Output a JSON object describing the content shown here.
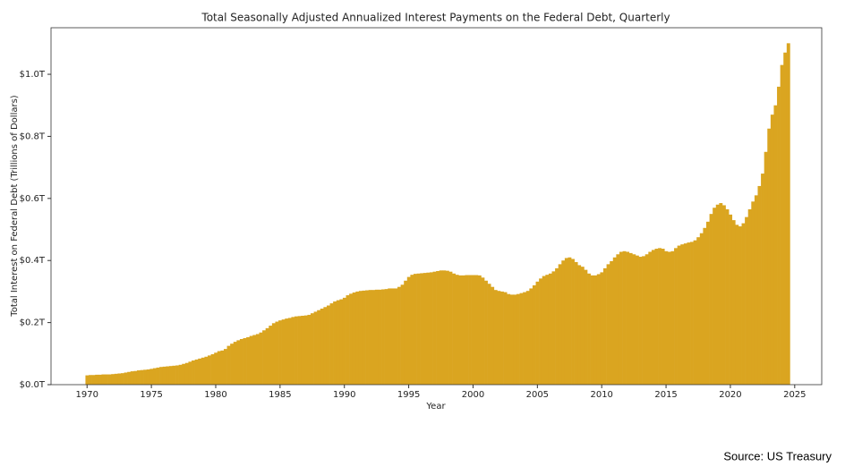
{
  "chart_data": {
    "type": "bar",
    "title": "Total Seasonally Adjusted Annualized Interest Payments on the Federal Debt, Quarterly",
    "xlabel": "Year",
    "ylabel": "Total Interest on Federal Debt (Trillions of Dollars)",
    "source": "Source: US Treasury",
    "color": "#daa520",
    "xlim": [
      1967.2,
      2027.1
    ],
    "ylim": [
      0,
      1.15
    ],
    "xticks": [
      1970,
      1975,
      1980,
      1985,
      1990,
      1995,
      2000,
      2005,
      2010,
      2015,
      2020,
      2025
    ],
    "yticks": [
      {
        "value": 0,
        "label": "$0.0T"
      },
      {
        "value": 0.2,
        "label": "$0.2T"
      },
      {
        "value": 0.4,
        "label": "$0.4T"
      },
      {
        "value": 0.6,
        "label": "$0.6T"
      },
      {
        "value": 0.8,
        "label": "$0.8T"
      },
      {
        "value": 1.0,
        "label": "$1.0T"
      }
    ],
    "x": [
      1970,
      1970.25,
      1970.5,
      1970.75,
      1971,
      1971.25,
      1971.5,
      1971.75,
      1972,
      1972.25,
      1972.5,
      1972.75,
      1973,
      1973.25,
      1973.5,
      1973.75,
      1974,
      1974.25,
      1974.5,
      1974.75,
      1975,
      1975.25,
      1975.5,
      1975.75,
      1976,
      1976.25,
      1976.5,
      1976.75,
      1977,
      1977.25,
      1977.5,
      1977.75,
      1978,
      1978.25,
      1978.5,
      1978.75,
      1979,
      1979.25,
      1979.5,
      1979.75,
      1980,
      1980.25,
      1980.5,
      1980.75,
      1981,
      1981.25,
      1981.5,
      1981.75,
      1982,
      1982.25,
      1982.5,
      1982.75,
      1983,
      1983.25,
      1983.5,
      1983.75,
      1984,
      1984.25,
      1984.5,
      1984.75,
      1985,
      1985.25,
      1985.5,
      1985.75,
      1986,
      1986.25,
      1986.5,
      1986.75,
      1987,
      1987.25,
      1987.5,
      1987.75,
      1988,
      1988.25,
      1988.5,
      1988.75,
      1989,
      1989.25,
      1989.5,
      1989.75,
      1990,
      1990.25,
      1990.5,
      1990.75,
      1991,
      1991.25,
      1991.5,
      1991.75,
      1992,
      1992.25,
      1992.5,
      1992.75,
      1993,
      1993.25,
      1993.5,
      1993.75,
      1994,
      1994.25,
      1994.5,
      1994.75,
      1995,
      1995.25,
      1995.5,
      1995.75,
      1996,
      1996.25,
      1996.5,
      1996.75,
      1997,
      1997.25,
      1997.5,
      1997.75,
      1998,
      1998.25,
      1998.5,
      1998.75,
      1999,
      1999.25,
      1999.5,
      1999.75,
      2000,
      2000.25,
      2000.5,
      2000.75,
      2001,
      2001.25,
      2001.5,
      2001.75,
      2002,
      2002.25,
      2002.5,
      2002.75,
      2003,
      2003.25,
      2003.5,
      2003.75,
      2004,
      2004.25,
      2004.5,
      2004.75,
      2005,
      2005.25,
      2005.5,
      2005.75,
      2006,
      2006.25,
      2006.5,
      2006.75,
      2007,
      2007.25,
      2007.5,
      2007.75,
      2008,
      2008.25,
      2008.5,
      2008.75,
      2009,
      2009.25,
      2009.5,
      2009.75,
      2010,
      2010.25,
      2010.5,
      2010.75,
      2011,
      2011.25,
      2011.5,
      2011.75,
      2012,
      2012.25,
      2012.5,
      2012.75,
      2013,
      2013.25,
      2013.5,
      2013.75,
      2014,
      2014.25,
      2014.5,
      2014.75,
      2015,
      2015.25,
      2015.5,
      2015.75,
      2016,
      2016.25,
      2016.5,
      2016.75,
      2017,
      2017.25,
      2017.5,
      2017.75,
      2018,
      2018.25,
      2018.5,
      2018.75,
      2019,
      2019.25,
      2019.5,
      2019.75,
      2020,
      2020.25,
      2020.5,
      2020.75,
      2021,
      2021.25,
      2021.5,
      2021.75,
      2022,
      2022.25,
      2022.5,
      2022.75,
      2023,
      2023.25,
      2023.5,
      2023.75,
      2024,
      2024.25,
      2024.5
    ],
    "values": [
      0.03,
      0.031,
      0.031,
      0.032,
      0.032,
      0.033,
      0.033,
      0.033,
      0.034,
      0.035,
      0.036,
      0.037,
      0.039,
      0.041,
      0.043,
      0.044,
      0.046,
      0.047,
      0.048,
      0.049,
      0.051,
      0.053,
      0.055,
      0.057,
      0.058,
      0.059,
      0.06,
      0.061,
      0.062,
      0.064,
      0.067,
      0.07,
      0.074,
      0.078,
      0.081,
      0.084,
      0.087,
      0.09,
      0.094,
      0.098,
      0.103,
      0.108,
      0.11,
      0.115,
      0.125,
      0.132,
      0.138,
      0.143,
      0.147,
      0.15,
      0.153,
      0.157,
      0.16,
      0.163,
      0.168,
      0.175,
      0.182,
      0.19,
      0.198,
      0.203,
      0.207,
      0.21,
      0.213,
      0.215,
      0.218,
      0.22,
      0.221,
      0.222,
      0.223,
      0.225,
      0.23,
      0.235,
      0.24,
      0.245,
      0.25,
      0.255,
      0.262,
      0.268,
      0.272,
      0.275,
      0.28,
      0.288,
      0.293,
      0.297,
      0.3,
      0.302,
      0.303,
      0.304,
      0.305,
      0.305,
      0.306,
      0.306,
      0.307,
      0.308,
      0.31,
      0.31,
      0.31,
      0.315,
      0.322,
      0.335,
      0.347,
      0.354,
      0.357,
      0.358,
      0.359,
      0.36,
      0.361,
      0.362,
      0.364,
      0.366,
      0.368,
      0.368,
      0.367,
      0.364,
      0.358,
      0.354,
      0.352,
      0.352,
      0.353,
      0.353,
      0.353,
      0.353,
      0.352,
      0.345,
      0.335,
      0.325,
      0.315,
      0.305,
      0.302,
      0.3,
      0.298,
      0.292,
      0.29,
      0.29,
      0.292,
      0.295,
      0.298,
      0.302,
      0.31,
      0.32,
      0.332,
      0.342,
      0.35,
      0.354,
      0.358,
      0.365,
      0.375,
      0.388,
      0.4,
      0.408,
      0.41,
      0.405,
      0.395,
      0.385,
      0.38,
      0.37,
      0.358,
      0.352,
      0.352,
      0.356,
      0.362,
      0.375,
      0.388,
      0.398,
      0.41,
      0.42,
      0.428,
      0.43,
      0.428,
      0.424,
      0.42,
      0.416,
      0.412,
      0.414,
      0.42,
      0.428,
      0.434,
      0.438,
      0.44,
      0.438,
      0.43,
      0.428,
      0.43,
      0.44,
      0.448,
      0.452,
      0.455,
      0.458,
      0.46,
      0.465,
      0.475,
      0.488,
      0.505,
      0.525,
      0.55,
      0.57,
      0.58,
      0.585,
      0.578,
      0.565,
      0.548,
      0.53,
      0.515,
      0.51,
      0.52,
      0.54,
      0.565,
      0.59,
      0.61,
      0.64,
      0.68,
      0.75,
      0.825,
      0.87,
      0.9,
      0.96,
      1.03,
      1.07,
      1.1
    ]
  }
}
